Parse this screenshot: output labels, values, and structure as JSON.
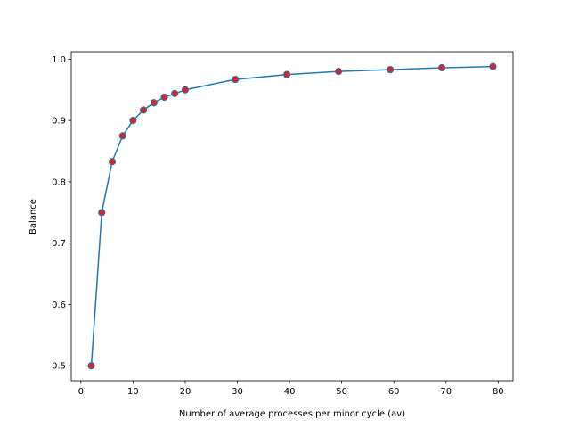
{
  "chart_data": {
    "type": "line",
    "title": "",
    "xlabel": "Number of average processes per minor cycle (av)",
    "ylabel": "Balance",
    "xlim": [
      -1.85,
      82.85
    ],
    "ylim": [
      0.4756,
      1.0122
    ],
    "xticks": [
      0,
      10,
      20,
      30,
      40,
      50,
      60,
      70,
      80
    ],
    "xtick_labels": [
      "0",
      "10",
      "20",
      "30",
      "40",
      "50",
      "60",
      "70",
      "80"
    ],
    "yticks": [
      0.5,
      0.6,
      0.7,
      0.8,
      0.9,
      1.0
    ],
    "ytick_labels": [
      "0.5",
      "0.6",
      "0.7",
      "0.8",
      "0.9",
      "1.0"
    ],
    "grid": false,
    "legend": "none",
    "series": [
      {
        "line_color": "#1f77b4",
        "marker_face_color": "#d62728",
        "marker_edge_color": "#1f77b4",
        "x": [
          2,
          4,
          6,
          8,
          10,
          12,
          14,
          16,
          18,
          20,
          29.6,
          39.5,
          49.4,
          59.3,
          69.2,
          79
        ],
        "y": [
          0.5,
          0.75,
          0.833,
          0.875,
          0.9,
          0.917,
          0.929,
          0.938,
          0.944,
          0.95,
          0.967,
          0.975,
          0.98,
          0.983,
          0.986,
          0.988
        ]
      }
    ]
  }
}
